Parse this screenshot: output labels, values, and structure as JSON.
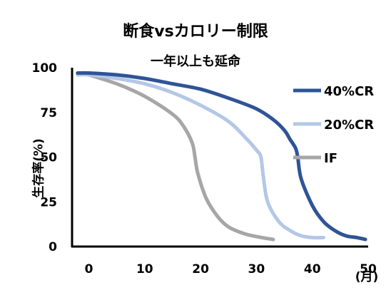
{
  "chart_data": {
    "type": "line",
    "title": "断食vsカロリー制限",
    "subtitle": "一年以上も延命",
    "xlabel": "(月)",
    "ylabel": "生存率(%)",
    "xlim": [
      -3,
      50
    ],
    "ylim": [
      0,
      100
    ],
    "xticks": [
      0,
      10,
      20,
      30,
      40,
      50
    ],
    "yticks": [
      0,
      25,
      50,
      75,
      100
    ],
    "grid": false,
    "legend_position": "right",
    "series": [
      {
        "name": "40%CR",
        "color": "#2f5496",
        "x": [
          -2,
          0,
          5,
          10,
          15,
          20,
          25,
          30,
          33,
          35,
          36,
          37,
          37.4,
          38,
          40,
          42,
          44,
          46,
          48,
          49.5
        ],
        "y": [
          97,
          97,
          96,
          94,
          91,
          88,
          83,
          77,
          71,
          65,
          60,
          55,
          50,
          38,
          23,
          14,
          9,
          6,
          5,
          4
        ]
      },
      {
        "name": "20%CR",
        "color": "#b4c7e7",
        "x": [
          -2,
          0,
          5,
          10,
          15,
          20,
          25,
          28,
          30,
          30.8,
          31.2,
          32,
          34,
          36,
          38,
          40,
          42
        ],
        "y": [
          96,
          96,
          94,
          91,
          86,
          79,
          70,
          61,
          54,
          50,
          40,
          25,
          14,
          9,
          6,
          5,
          5
        ]
      },
      {
        "name": "IF",
        "color": "#a6a6a6",
        "x": [
          0,
          5,
          10,
          15,
          17,
          18.5,
          19,
          19.5,
          21,
          23,
          25,
          28,
          31,
          33
        ],
        "y": [
          96,
          91,
          84,
          74,
          67,
          58,
          50,
          41,
          27,
          17,
          11,
          7,
          5,
          4
        ]
      }
    ]
  }
}
